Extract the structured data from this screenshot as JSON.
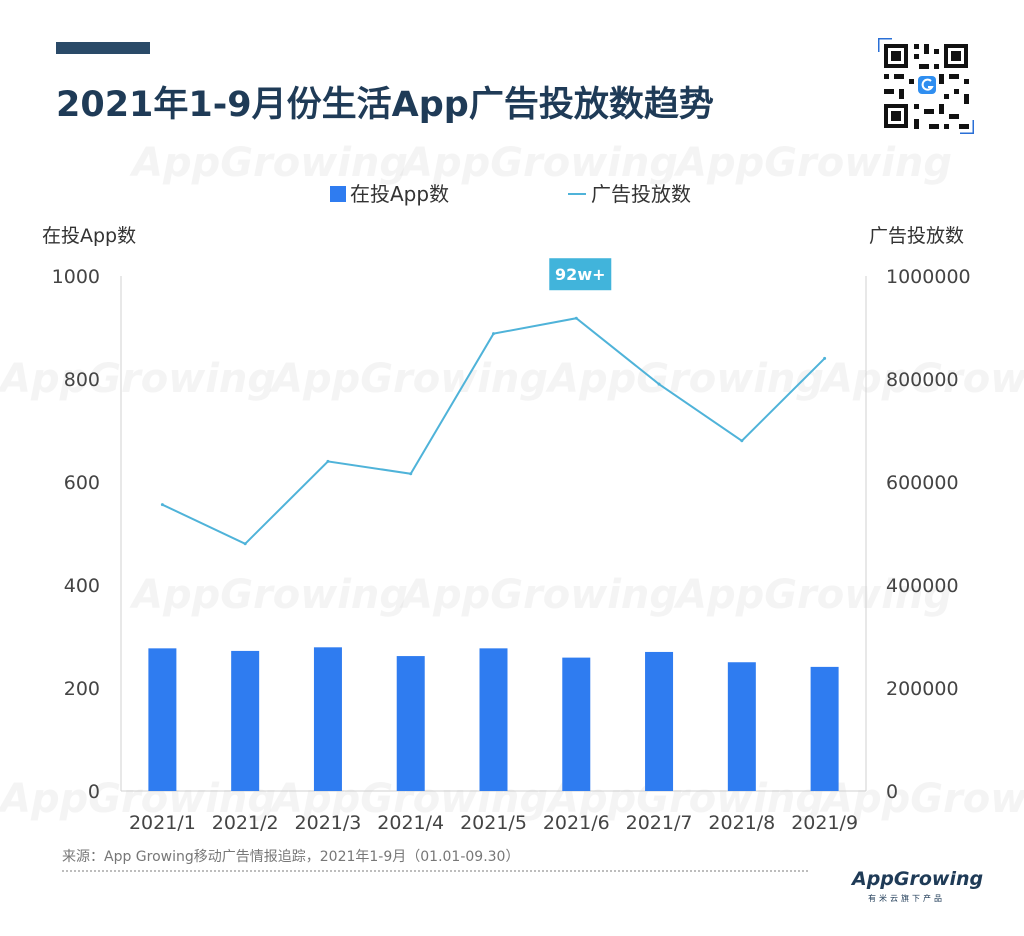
{
  "header": {
    "title": "2021年1-9月份生活App广告投放数趋势"
  },
  "watermark_text": "AppGrowing",
  "legend": {
    "bar_label": "在投App数",
    "line_label": "广告投放数"
  },
  "axes": {
    "left_title": "在投App数",
    "right_title": "广告投放数",
    "left_ticks": [
      "1000",
      "800",
      "600",
      "400",
      "200",
      "0"
    ],
    "right_ticks": [
      "1000000",
      "800000",
      "600000",
      "400000",
      "200000",
      "0"
    ]
  },
  "peak_callout": "92w+",
  "colors": {
    "bar": "#2f7cf0",
    "line": "#4fb3d9",
    "callout_bg": "#41b4db",
    "title": "#1f3b57",
    "axis_text": "#444444"
  },
  "chart_data": {
    "type": "bar",
    "title": "2021年1-9月份生活App广告投放数趋势",
    "categories": [
      "2021/1",
      "2021/2",
      "2021/3",
      "2021/4",
      "2021/5",
      "2021/6",
      "2021/7",
      "2021/8",
      "2021/9"
    ],
    "series": [
      {
        "name": "在投App数",
        "type": "bar",
        "axis": "left",
        "values": [
          277,
          272,
          279,
          262,
          277,
          259,
          270,
          250,
          241
        ]
      },
      {
        "name": "广告投放数",
        "type": "line",
        "axis": "right",
        "values": [
          556000,
          480000,
          640000,
          616000,
          888000,
          918000,
          790000,
          680000,
          840000
        ]
      }
    ],
    "ylabel": "在投App数",
    "ylabel_right": "广告投放数",
    "ylim": [
      0,
      1000
    ],
    "ylim_right": [
      0,
      1000000
    ],
    "grid": false,
    "legend_position": "top-center"
  },
  "footer": {
    "source": "来源：App Growing移动广告情报追踪，2021年1-9月（01.01-09.30）",
    "brand": "AppGrowing",
    "brand_tagline": "有米云旗下产品"
  }
}
